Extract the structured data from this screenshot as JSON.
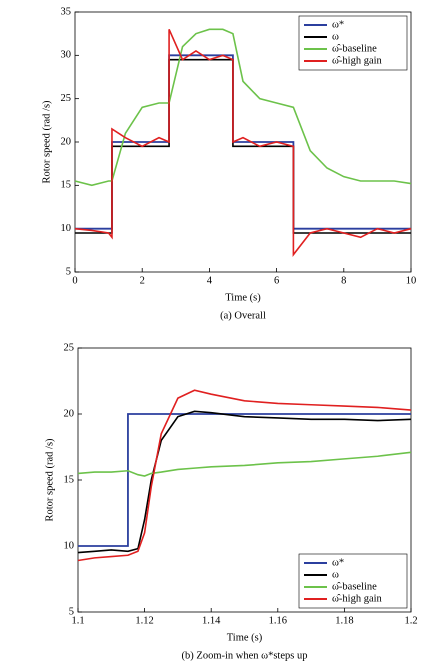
{
  "chart_data": [
    {
      "type": "line",
      "xlabel": "Time (s)",
      "ylabel": "Rotor speed (rad /s)",
      "caption": "(a) Overall",
      "xlim": [
        0,
        10
      ],
      "xticks": [
        0,
        2,
        4,
        6,
        8,
        10
      ],
      "ylim": [
        5,
        35
      ],
      "yticks": [
        5,
        10,
        15,
        20,
        25,
        30,
        35
      ],
      "legend": "upper right",
      "x": [
        0,
        0.5,
        1.0,
        1.1,
        1.1,
        1.5,
        2,
        2.5,
        2.8,
        2.8,
        3.2,
        3.6,
        4,
        4.4,
        4.7,
        4.7,
        5,
        5.5,
        6,
        6.5,
        6.5,
        7,
        7.5,
        8,
        8.5,
        9,
        9.5,
        10
      ],
      "series": [
        {
          "name": "ω*",
          "color": "#2b3f9e",
          "values": [
            10,
            10,
            10,
            10,
            20,
            20,
            20,
            20,
            20,
            30,
            30,
            30,
            30,
            30,
            30,
            20,
            20,
            20,
            20,
            20,
            10,
            10,
            10,
            10,
            10,
            10,
            10,
            10
          ]
        },
        {
          "name": "ω",
          "color": "#000000",
          "values": [
            9.5,
            9.5,
            9.5,
            9.5,
            19.5,
            19.5,
            19.5,
            19.5,
            19.5,
            29.5,
            29.5,
            29.5,
            29.5,
            29.5,
            29.5,
            19.5,
            19.5,
            19.5,
            19.5,
            19.5,
            9.5,
            9.5,
            9.5,
            9.5,
            9.5,
            9.5,
            9.5,
            9.5
          ]
        },
        {
          "name": "ω̂-baseline",
          "color": "#6cc24a",
          "values": [
            15.5,
            15,
            15.5,
            15.5,
            15.5,
            21,
            24,
            24.5,
            24.5,
            24.5,
            31,
            32.5,
            33,
            33,
            32.5,
            32.5,
            27,
            25,
            24.5,
            24,
            24,
            19,
            17,
            16,
            15.5,
            15.5,
            15.5,
            15.2
          ]
        },
        {
          "name": "ω̂-high gain",
          "color": "#e02020",
          "values": [
            10,
            9.8,
            9.5,
            9,
            21.5,
            20.5,
            19.5,
            20.5,
            20,
            33,
            29.5,
            30.5,
            29.5,
            30,
            29.5,
            20,
            20.5,
            19.5,
            20,
            19.5,
            7,
            9.5,
            10,
            9.5,
            9,
            10,
            9.5,
            10
          ]
        }
      ]
    },
    {
      "type": "line",
      "xlabel": "Time (s)",
      "ylabel": "Rotor speed (rad /s)",
      "caption": "(b) Zoom-in when ω*steps up",
      "xlim": [
        1.1,
        1.2
      ],
      "xticks": [
        1.1,
        1.12,
        1.14,
        1.16,
        1.18,
        1.2
      ],
      "ylim": [
        5,
        25
      ],
      "yticks": [
        5,
        10,
        15,
        20,
        25
      ],
      "legend": "lower right",
      "x": [
        1.1,
        1.105,
        1.11,
        1.115,
        1.115,
        1.118,
        1.12,
        1.122,
        1.125,
        1.13,
        1.135,
        1.14,
        1.15,
        1.16,
        1.17,
        1.18,
        1.19,
        1.2
      ],
      "series": [
        {
          "name": "ω*",
          "color": "#2b3f9e",
          "values": [
            10,
            10,
            10,
            10,
            20,
            20,
            20,
            20,
            20,
            20,
            20,
            20,
            20,
            20,
            20,
            20,
            20,
            20
          ]
        },
        {
          "name": "ω",
          "color": "#000000",
          "values": [
            9.5,
            9.6,
            9.7,
            9.6,
            9.6,
            9.8,
            12,
            15,
            18,
            19.8,
            20.2,
            20.1,
            19.8,
            19.7,
            19.6,
            19.6,
            19.5,
            19.6
          ]
        },
        {
          "name": "ω̂-baseline",
          "color": "#6cc24a",
          "values": [
            15.5,
            15.6,
            15.6,
            15.7,
            15.7,
            15.4,
            15.3,
            15.5,
            15.6,
            15.8,
            15.9,
            16,
            16.1,
            16.3,
            16.4,
            16.6,
            16.8,
            17.1
          ]
        },
        {
          "name": "ω̂-high gain",
          "color": "#e02020",
          "values": [
            8.9,
            9.1,
            9.2,
            9.3,
            9.3,
            9.6,
            11,
            14.5,
            18.5,
            21.2,
            21.8,
            21.5,
            21,
            20.8,
            20.7,
            20.6,
            20.5,
            20.3
          ]
        }
      ]
    }
  ]
}
